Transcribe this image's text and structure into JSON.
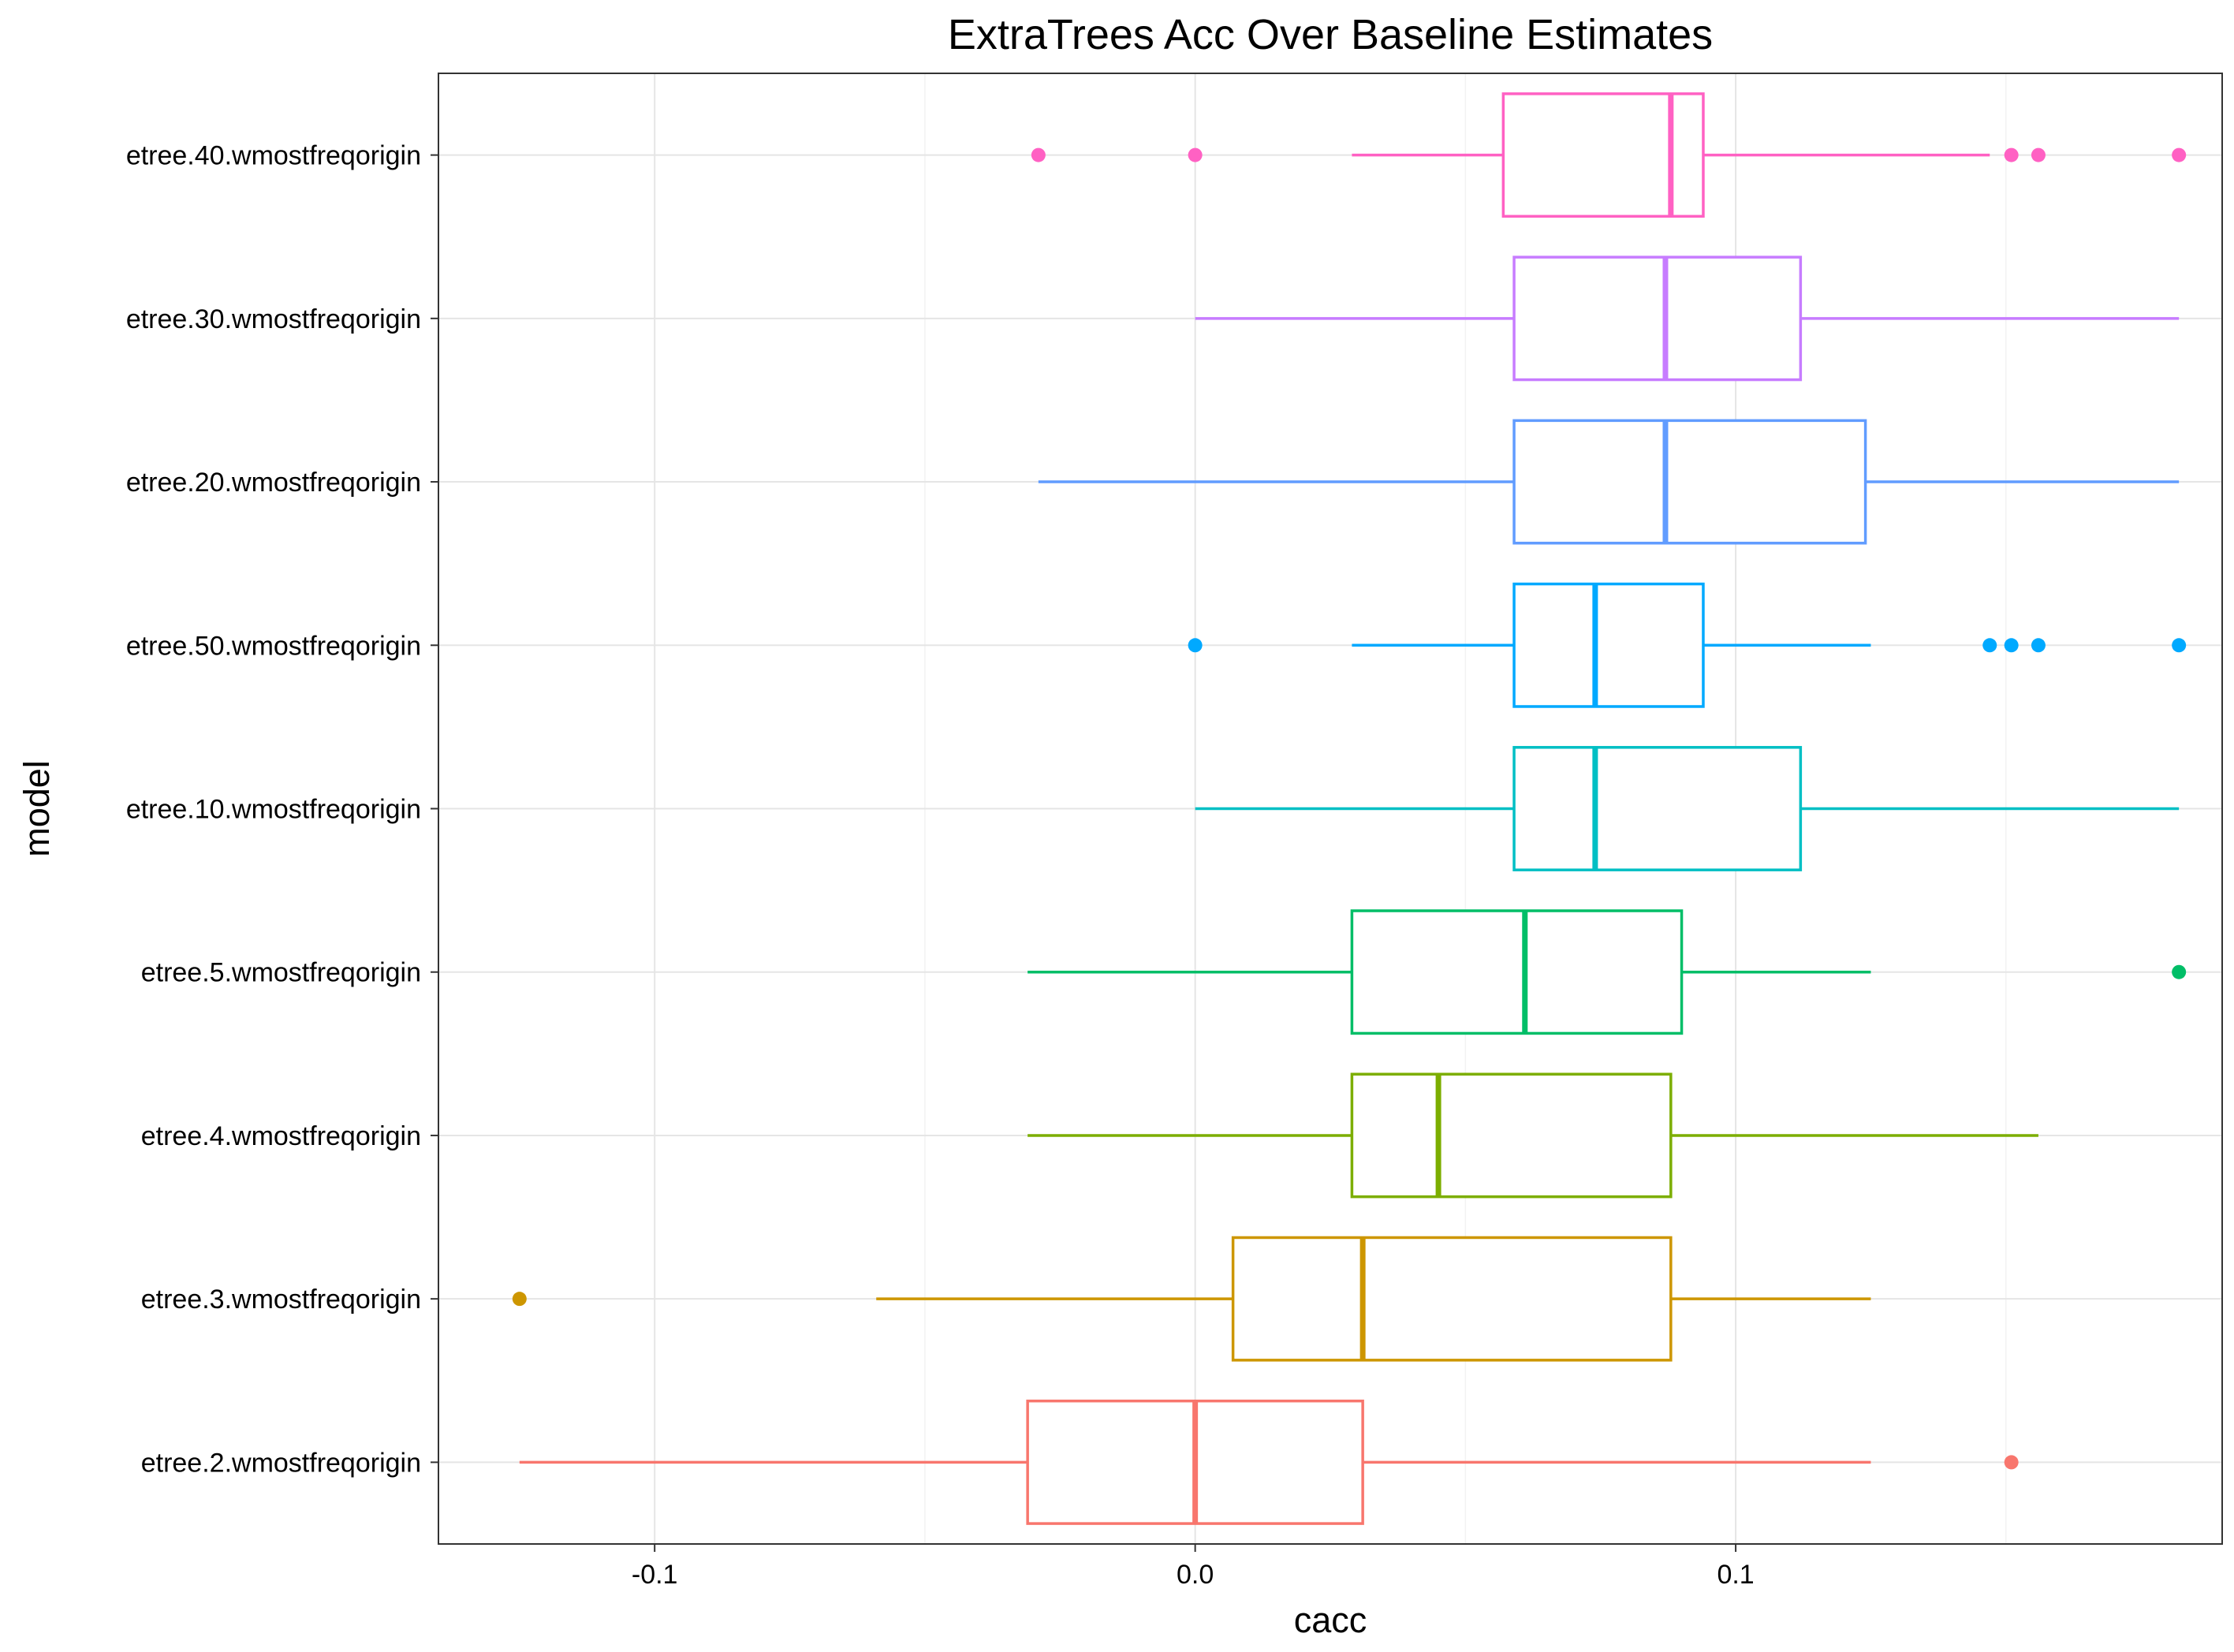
{
  "chart_data": {
    "type": "boxplot",
    "title": "ExtraTrees Acc Over Baseline Estimates",
    "xlabel": "cacc",
    "ylabel": "model",
    "orientation": "horizontal",
    "grid": true,
    "legend": "none",
    "xlim": [
      -0.14,
      0.19
    ],
    "x_ticks": [
      -0.1,
      0.0,
      0.1
    ],
    "x_tick_labels": [
      "-0.1",
      "0.0",
      "0.1"
    ],
    "series": [
      {
        "category": "etree.2.wmostfreqorigin",
        "color": "#F8766D",
        "whisker_low": -0.125,
        "q1": -0.031,
        "median": 0.0,
        "q3": 0.031,
        "whisker_high": 0.125,
        "outliers": [
          0.151
        ]
      },
      {
        "category": "etree.3.wmostfreqorigin",
        "color": "#CD9600",
        "whisker_low": -0.059,
        "q1": 0.007,
        "median": 0.031,
        "q3": 0.088,
        "whisker_high": 0.125,
        "outliers": [
          -0.125
        ]
      },
      {
        "category": "etree.4.wmostfreqorigin",
        "color": "#7CAE00",
        "whisker_low": -0.031,
        "q1": 0.029,
        "median": 0.045,
        "q3": 0.088,
        "whisker_high": 0.156,
        "outliers": []
      },
      {
        "category": "etree.5.wmostfreqorigin",
        "color": "#00BE67",
        "whisker_low": -0.031,
        "q1": 0.029,
        "median": 0.061,
        "q3": 0.09,
        "whisker_high": 0.125,
        "outliers": [
          0.182
        ]
      },
      {
        "category": "etree.10.wmostfreqorigin",
        "color": "#00BFC4",
        "whisker_low": 0.0,
        "q1": 0.059,
        "median": 0.074,
        "q3": 0.112,
        "whisker_high": 0.182,
        "outliers": []
      },
      {
        "category": "etree.50.wmostfreqorigin",
        "color": "#00A9FF",
        "whisker_low": 0.029,
        "q1": 0.059,
        "median": 0.074,
        "q3": 0.094,
        "whisker_high": 0.125,
        "outliers": [
          0.0,
          0.147,
          0.151,
          0.156,
          0.182
        ]
      },
      {
        "category": "etree.20.wmostfreqorigin",
        "color": "#619CFF",
        "whisker_low": -0.029,
        "q1": 0.059,
        "median": 0.087,
        "q3": 0.124,
        "whisker_high": 0.182,
        "outliers": []
      },
      {
        "category": "etree.30.wmostfreqorigin",
        "color": "#C77CFF",
        "whisker_low": 0.0,
        "q1": 0.059,
        "median": 0.087,
        "q3": 0.112,
        "whisker_high": 0.182,
        "outliers": []
      },
      {
        "category": "etree.40.wmostfreqorigin",
        "color": "#FF61C3",
        "whisker_low": 0.029,
        "q1": 0.057,
        "median": 0.088,
        "q3": 0.094,
        "whisker_high": 0.147,
        "outliers": [
          -0.029,
          0.0,
          0.151,
          0.156,
          0.182
        ]
      }
    ]
  }
}
